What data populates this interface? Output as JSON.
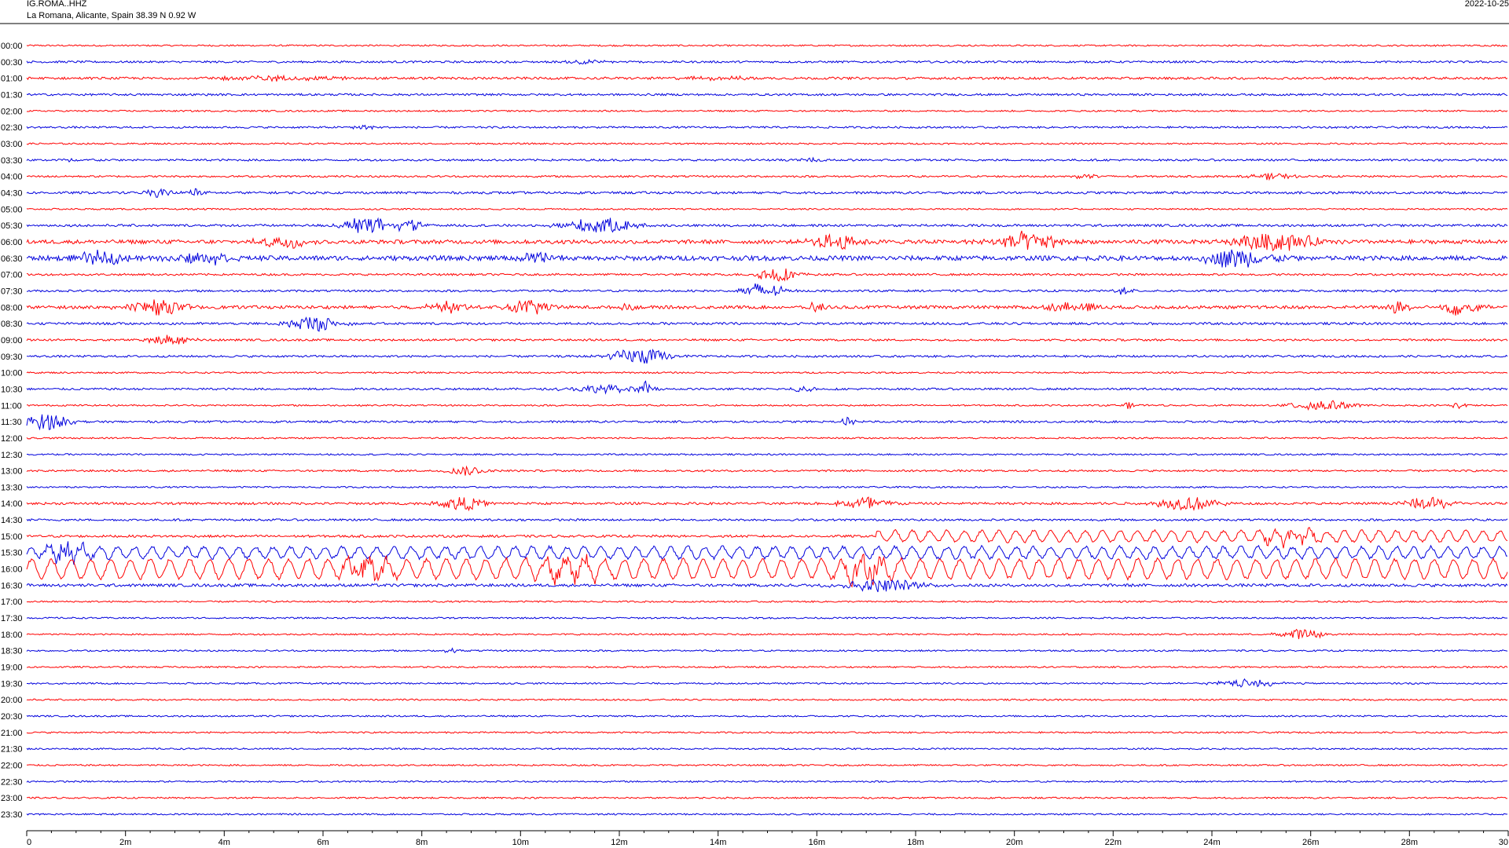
{
  "header": {
    "station_code": "IG.ROMA..HHZ",
    "location": "La Romana, Alicante, Spain  38.39 N 0.92 W",
    "date": "2022-10-25"
  },
  "colors": {
    "even_rows": "#ff0000",
    "odd_rows": "#0000dd",
    "axis": "#000000"
  },
  "chart_data": {
    "type": "line",
    "title": "IG.ROMA..HHZ",
    "xlabel": "",
    "ylabel": "",
    "xlim_minutes": [
      0,
      30
    ],
    "x_ticks": [
      {
        "value": 0,
        "label": "0"
      },
      {
        "value": 2,
        "label": "2m"
      },
      {
        "value": 4,
        "label": "4m"
      },
      {
        "value": 6,
        "label": "6m"
      },
      {
        "value": 8,
        "label": "8m"
      },
      {
        "value": 10,
        "label": "10m"
      },
      {
        "value": 12,
        "label": "12m"
      },
      {
        "value": 14,
        "label": "14m"
      },
      {
        "value": 16,
        "label": "16m"
      },
      {
        "value": 18,
        "label": "18m"
      },
      {
        "value": 20,
        "label": "20m"
      },
      {
        "value": 22,
        "label": "22m"
      },
      {
        "value": 24,
        "label": "24m"
      },
      {
        "value": 26,
        "label": "26m"
      },
      {
        "value": 28,
        "label": "28m"
      },
      {
        "value": 30,
        "label": "30"
      }
    ],
    "grid": false,
    "rows": [
      {
        "label": "00:00",
        "noise": 1.0,
        "events": []
      },
      {
        "label": "00:30",
        "noise": 1.3,
        "events": [
          {
            "t": 11.3,
            "amp": 2.5,
            "dur": 0.8
          }
        ]
      },
      {
        "label": "01:00",
        "noise": 1.5,
        "events": [
          {
            "t": 5.0,
            "amp": 3.0,
            "dur": 3.0
          },
          {
            "t": 14.0,
            "amp": 2.0,
            "dur": 2.0
          }
        ]
      },
      {
        "label": "01:30",
        "noise": 1.3,
        "events": []
      },
      {
        "label": "02:00",
        "noise": 1.0,
        "events": []
      },
      {
        "label": "02:30",
        "noise": 1.2,
        "events": [
          {
            "t": 6.8,
            "amp": 2.5,
            "dur": 0.6
          }
        ]
      },
      {
        "label": "03:00",
        "noise": 1.0,
        "events": []
      },
      {
        "label": "03:30",
        "noise": 1.3,
        "events": [
          {
            "t": 1.0,
            "amp": 2.0,
            "dur": 0.8
          },
          {
            "t": 16.0,
            "amp": 2.5,
            "dur": 0.6
          }
        ]
      },
      {
        "label": "04:00",
        "noise": 1.2,
        "events": [
          {
            "t": 21.5,
            "amp": 3.0,
            "dur": 0.6
          },
          {
            "t": 25.2,
            "amp": 4.0,
            "dur": 0.8
          }
        ]
      },
      {
        "label": "04:30",
        "noise": 1.5,
        "events": [
          {
            "t": 2.7,
            "amp": 6.0,
            "dur": 0.5
          },
          {
            "t": 3.4,
            "amp": 5.0,
            "dur": 0.4
          }
        ]
      },
      {
        "label": "05:00",
        "noise": 1.0,
        "events": []
      },
      {
        "label": "05:30",
        "noise": 1.5,
        "events": [
          {
            "t": 6.9,
            "amp": 10.0,
            "dur": 1.0
          },
          {
            "t": 7.7,
            "amp": 8.0,
            "dur": 0.6
          },
          {
            "t": 11.6,
            "amp": 10.0,
            "dur": 1.4
          }
        ]
      },
      {
        "label": "06:00",
        "noise": 2.5,
        "events": [
          {
            "t": 5.2,
            "amp": 8.0,
            "dur": 1.0
          },
          {
            "t": 16.4,
            "amp": 9.0,
            "dur": 1.0
          },
          {
            "t": 20.2,
            "amp": 12.0,
            "dur": 1.4
          },
          {
            "t": 25.3,
            "amp": 12.0,
            "dur": 1.6
          }
        ]
      },
      {
        "label": "06:30",
        "noise": 3.0,
        "events": [
          {
            "t": 1.5,
            "amp": 8.0,
            "dur": 1.0
          },
          {
            "t": 3.6,
            "amp": 8.0,
            "dur": 1.2
          },
          {
            "t": 10.5,
            "amp": 7.0,
            "dur": 1.0
          },
          {
            "t": 24.5,
            "amp": 12.0,
            "dur": 1.4
          }
        ]
      },
      {
        "label": "07:00",
        "noise": 1.3,
        "events": [
          {
            "t": 15.2,
            "amp": 10.0,
            "dur": 0.8
          }
        ]
      },
      {
        "label": "07:30",
        "noise": 1.3,
        "events": [
          {
            "t": 14.9,
            "amp": 10.0,
            "dur": 0.9
          },
          {
            "t": 22.2,
            "amp": 4.0,
            "dur": 0.4
          }
        ]
      },
      {
        "label": "08:00",
        "noise": 2.0,
        "events": [
          {
            "t": 2.6,
            "amp": 9.0,
            "dur": 1.2
          },
          {
            "t": 8.5,
            "amp": 7.0,
            "dur": 0.8
          },
          {
            "t": 10.2,
            "amp": 9.0,
            "dur": 1.0
          },
          {
            "t": 12.2,
            "amp": 5.0,
            "dur": 0.3
          },
          {
            "t": 16.0,
            "amp": 6.0,
            "dur": 0.4
          },
          {
            "t": 21.2,
            "amp": 7.0,
            "dur": 1.0
          },
          {
            "t": 27.8,
            "amp": 9.0,
            "dur": 0.5
          },
          {
            "t": 29.0,
            "amp": 10.0,
            "dur": 0.8
          }
        ]
      },
      {
        "label": "08:30",
        "noise": 1.5,
        "events": [
          {
            "t": 5.8,
            "amp": 10.0,
            "dur": 1.0
          }
        ]
      },
      {
        "label": "09:00",
        "noise": 1.3,
        "events": [
          {
            "t": 2.9,
            "amp": 7.0,
            "dur": 0.8
          }
        ]
      },
      {
        "label": "09:30",
        "noise": 1.3,
        "events": [
          {
            "t": 12.4,
            "amp": 10.0,
            "dur": 1.2
          }
        ]
      },
      {
        "label": "10:00",
        "noise": 1.0,
        "events": []
      },
      {
        "label": "10:30",
        "noise": 1.3,
        "events": [
          {
            "t": 11.8,
            "amp": 5.0,
            "dur": 1.6
          },
          {
            "t": 12.5,
            "amp": 9.0,
            "dur": 0.3
          },
          {
            "t": 15.7,
            "amp": 5.0,
            "dur": 0.5
          }
        ]
      },
      {
        "label": "11:00",
        "noise": 1.0,
        "events": [
          {
            "t": 22.3,
            "amp": 4.0,
            "dur": 0.3
          },
          {
            "t": 26.2,
            "amp": 7.0,
            "dur": 1.4
          },
          {
            "t": 29.0,
            "amp": 5.0,
            "dur": 0.3
          }
        ]
      },
      {
        "label": "11:30",
        "noise": 1.3,
        "events": [
          {
            "t": 0.4,
            "amp": 11.0,
            "dur": 0.9
          },
          {
            "t": 16.6,
            "amp": 5.0,
            "dur": 0.3
          }
        ]
      },
      {
        "label": "12:00",
        "noise": 1.0,
        "events": []
      },
      {
        "label": "12:30",
        "noise": 1.0,
        "events": []
      },
      {
        "label": "13:00",
        "noise": 1.2,
        "events": [
          {
            "t": 8.9,
            "amp": 6.0,
            "dur": 0.7
          }
        ]
      },
      {
        "label": "13:30",
        "noise": 1.0,
        "events": []
      },
      {
        "label": "14:00",
        "noise": 1.5,
        "events": [
          {
            "t": 8.8,
            "amp": 9.0,
            "dur": 0.9
          },
          {
            "t": 17.0,
            "amp": 9.0,
            "dur": 1.0
          },
          {
            "t": 23.5,
            "amp": 9.0,
            "dur": 1.2
          },
          {
            "t": 28.4,
            "amp": 8.0,
            "dur": 1.0
          }
        ]
      },
      {
        "label": "14:30",
        "noise": 1.3,
        "events": []
      },
      {
        "label": "15:00",
        "noise": 1.5,
        "events": [
          {
            "t": 25.5,
            "amp": 8.0,
            "dur": 1.5
          }
        ],
        "swell": {
          "start": 17.2,
          "amp": 7.0,
          "period": 0.35
        }
      },
      {
        "label": "15:30",
        "noise": 2.0,
        "events": [
          {
            "t": 0.8,
            "amp": 11.0,
            "dur": 1.0
          }
        ],
        "swell": {
          "start": 0.0,
          "amp": 7.0,
          "period": 0.35
        }
      },
      {
        "label": "16:00",
        "noise": 2.0,
        "events": [
          {
            "t": 6.9,
            "amp": 14.0,
            "dur": 1.0
          },
          {
            "t": 11.0,
            "amp": 10.0,
            "dur": 1.5
          },
          {
            "t": 17.0,
            "amp": 14.0,
            "dur": 1.0
          }
        ],
        "swell": {
          "start": 0.0,
          "amp": 12.0,
          "period": 0.4
        }
      },
      {
        "label": "16:30",
        "noise": 1.8,
        "events": [
          {
            "t": 17.3,
            "amp": 8.0,
            "dur": 1.5
          }
        ]
      },
      {
        "label": "17:00",
        "noise": 1.0,
        "events": []
      },
      {
        "label": "17:30",
        "noise": 1.0,
        "events": []
      },
      {
        "label": "18:00",
        "noise": 1.0,
        "events": [
          {
            "t": 25.8,
            "amp": 7.0,
            "dur": 0.9
          }
        ]
      },
      {
        "label": "18:30",
        "noise": 1.0,
        "events": [
          {
            "t": 8.6,
            "amp": 3.0,
            "dur": 0.3
          }
        ]
      },
      {
        "label": "19:00",
        "noise": 1.0,
        "events": []
      },
      {
        "label": "19:30",
        "noise": 1.0,
        "events": [
          {
            "t": 24.8,
            "amp": 5.0,
            "dur": 1.4
          }
        ]
      },
      {
        "label": "20:00",
        "noise": 1.0,
        "events": []
      },
      {
        "label": "20:30",
        "noise": 1.0,
        "events": []
      },
      {
        "label": "21:00",
        "noise": 1.0,
        "events": []
      },
      {
        "label": "21:30",
        "noise": 1.0,
        "events": []
      },
      {
        "label": "22:00",
        "noise": 1.0,
        "events": []
      },
      {
        "label": "22:30",
        "noise": 1.0,
        "events": []
      },
      {
        "label": "23:00",
        "noise": 1.0,
        "events": []
      },
      {
        "label": "23:30",
        "noise": 1.0,
        "events": []
      }
    ]
  }
}
